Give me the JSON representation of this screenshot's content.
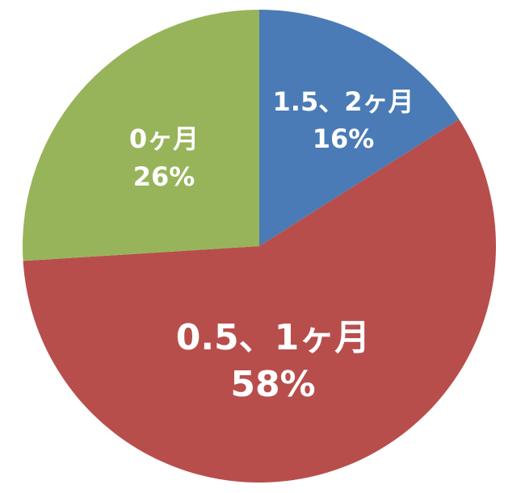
{
  "chart_data": {
    "type": "pie",
    "start": "top",
    "direction": "clockwise",
    "slices": [
      {
        "label": "1.5、2ヶ月",
        "value": 16,
        "value_label": "16%",
        "color": "#4a7bb6"
      },
      {
        "label": "0.5、1ヶ月",
        "value": 58,
        "value_label": "58%",
        "color": "#b84e4c"
      },
      {
        "label": "0ヶ月",
        "value": 26,
        "value_label": "26%",
        "color": "#97b45b"
      }
    ]
  }
}
